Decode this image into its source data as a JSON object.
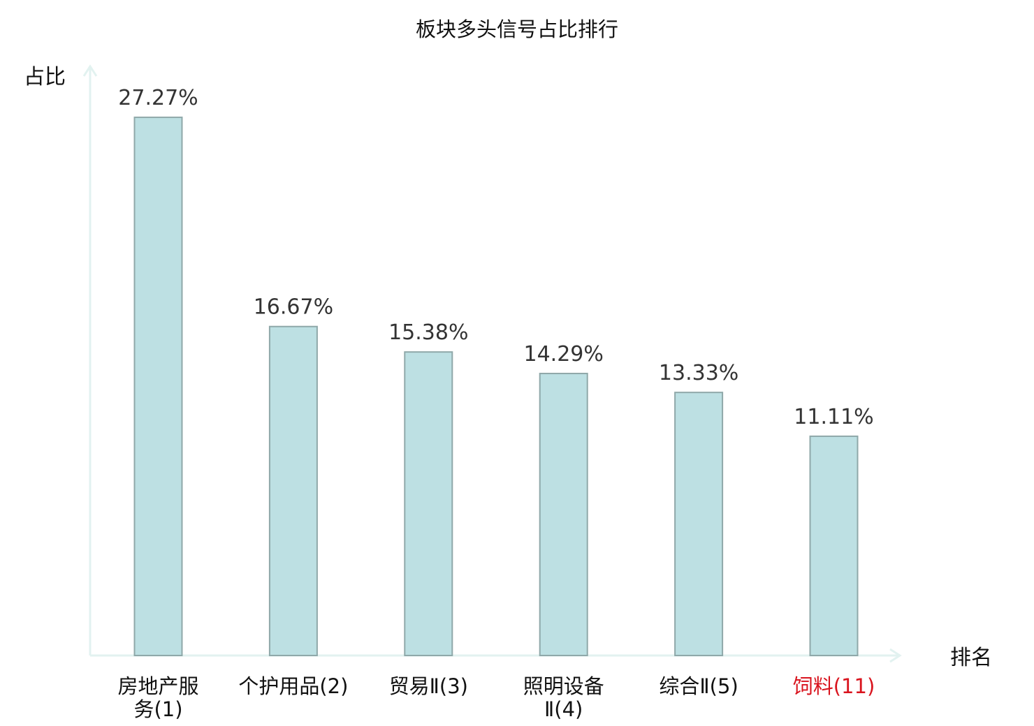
{
  "chart_data": {
    "type": "bar",
    "title": "板块多头信号占比排行",
    "ylabel": "占比",
    "xlabel": "排名",
    "ylim": [
      0,
      30
    ],
    "grid": false,
    "legend": "none",
    "categories": [
      "房地产服务(1)",
      "个护用品(2)",
      "贸易Ⅱ(3)",
      "照明设备Ⅱ(4)",
      "综合Ⅱ(5)",
      "饲料(11)"
    ],
    "values": [
      27.27,
      16.67,
      15.38,
      14.29,
      13.33,
      11.11
    ],
    "value_labels": [
      "27.27%",
      "16.67%",
      "15.38%",
      "14.29%",
      "13.33%",
      "11.11%"
    ],
    "highlight_index": 5
  },
  "colors": {
    "bar_fill": "#bde0e3",
    "bar_stroke": "#8fa8a9",
    "axis": "#e2f2f0",
    "highlight_text": "#d9141e"
  }
}
